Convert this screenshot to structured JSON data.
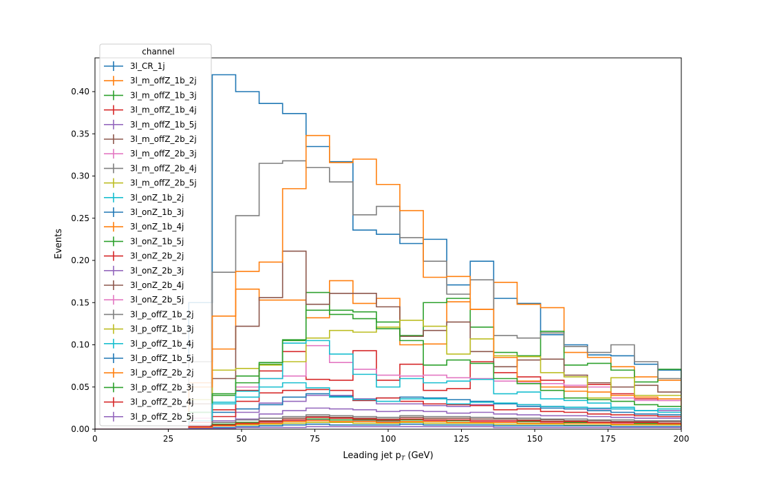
{
  "chart_data": {
    "type": "step-histogram",
    "xlabel": "Leading jet  p_T (GeV)",
    "ylabel": "Events",
    "xlim": [
      0,
      200
    ],
    "ylim": [
      0,
      0.44
    ],
    "xticks": [
      0,
      25,
      50,
      75,
      100,
      125,
      150,
      175,
      200
    ],
    "yticks": [
      0.0,
      0.05,
      0.1,
      0.15,
      0.2,
      0.25,
      0.3,
      0.35,
      0.4
    ],
    "ytick_labels": [
      "0.00",
      "0.05",
      "0.10",
      "0.15",
      "0.20",
      "0.25",
      "0.30",
      "0.35",
      "0.40"
    ],
    "bin_edges": [
      0,
      8,
      16,
      24,
      32,
      40,
      48,
      56,
      64,
      72,
      80,
      88,
      96,
      104,
      112,
      120,
      128,
      136,
      144,
      152,
      160,
      168,
      176,
      184,
      192,
      200
    ],
    "grid": false,
    "legend": {
      "title": "channel",
      "placement": "top-left"
    },
    "series": [
      {
        "name": "3l_CR_1j",
        "color": "#1f77b4",
        "values": [
          0,
          0,
          0,
          0,
          0.15,
          0.42,
          0.4,
          0.386,
          0.374,
          0.335,
          0.317,
          0.236,
          0.231,
          0.22,
          0.225,
          0.171,
          0.199,
          0.155,
          0.149,
          0.112,
          0.1,
          0.088,
          0.087,
          0.077,
          0.07
        ]
      },
      {
        "name": "3l_m_offZ_1b_2j",
        "color": "#ff7f0e",
        "values": [
          0,
          0,
          0,
          0,
          0.055,
          0.095,
          0.166,
          0.153,
          0.153,
          0.132,
          0.176,
          0.149,
          0.155,
          0.1,
          0.101,
          0.151,
          0.142,
          0.174,
          0.148,
          0.144,
          0.091,
          0.085,
          0.074,
          0.062,
          0.058
        ]
      },
      {
        "name": "3l_m_offZ_1b_3j",
        "color": "#2ca02c",
        "values": [
          0,
          0,
          0,
          0,
          0.02,
          0.04,
          0.063,
          0.077,
          0.105,
          0.162,
          0.141,
          0.139,
          0.127,
          0.111,
          0.15,
          0.155,
          0.121,
          0.091,
          0.087,
          0.116,
          0.076,
          0.078,
          0.07,
          0.056,
          0.071
        ]
      },
      {
        "name": "3l_m_offZ_1b_4j",
        "color": "#d62728",
        "values": [
          0,
          0,
          0,
          0,
          0.01,
          0.023,
          0.046,
          0.069,
          0.092,
          0.059,
          0.058,
          0.093,
          0.058,
          0.077,
          0.046,
          0.048,
          0.08,
          0.067,
          0.062,
          0.058,
          0.05,
          0.053,
          0.042,
          0.036,
          0.034
        ]
      },
      {
        "name": "3l_m_offZ_1b_5j",
        "color": "#9467bd",
        "values": [
          0,
          0,
          0,
          0,
          0.005,
          0.01,
          0.02,
          0.031,
          0.033,
          0.04,
          0.04,
          0.036,
          0.03,
          0.03,
          0.028,
          0.027,
          0.029,
          0.03,
          0.029,
          0.027,
          0.026,
          0.024,
          0.024,
          0.022,
          0.022
        ]
      },
      {
        "name": "3l_m_offZ_2b_2j",
        "color": "#8c564b",
        "values": [
          0,
          0,
          0,
          0,
          0.03,
          0.06,
          0.122,
          0.156,
          0.211,
          0.148,
          0.161,
          0.161,
          0.145,
          0.11,
          0.117,
          0.127,
          0.092,
          0.074,
          0.082,
          0.083,
          0.064,
          0.055,
          0.05,
          0.052,
          0.044
        ]
      },
      {
        "name": "3l_m_offZ_2b_3j",
        "color": "#e377c2",
        "values": [
          0,
          0,
          0,
          0,
          0.013,
          0.03,
          0.05,
          0.06,
          0.063,
          0.099,
          0.079,
          0.071,
          0.064,
          0.063,
          0.064,
          0.061,
          0.06,
          0.057,
          0.056,
          0.054,
          0.052,
          0.05,
          0.037,
          0.034,
          0.034
        ]
      },
      {
        "name": "3l_m_offZ_2b_4j",
        "color": "#7f7f7f",
        "values": [
          0,
          0,
          0,
          0,
          0.08,
          0.186,
          0.253,
          0.315,
          0.318,
          0.31,
          0.293,
          0.254,
          0.264,
          0.227,
          0.199,
          0.16,
          0.177,
          0.111,
          0.108,
          0.114,
          0.098,
          0.091,
          0.1,
          0.08,
          0.06
        ]
      },
      {
        "name": "3l_m_offZ_2b_5j",
        "color": "#bcbd22",
        "values": [
          0,
          0,
          0,
          0,
          0.035,
          0.07,
          0.072,
          0.076,
          0.08,
          0.108,
          0.117,
          0.115,
          0.121,
          0.129,
          0.122,
          0.089,
          0.107,
          0.087,
          0.086,
          0.067,
          0.062,
          0.037,
          0.061,
          0.04,
          0.04
        ]
      },
      {
        "name": "3l_onZ_1b_2j",
        "color": "#17becf",
        "values": [
          0,
          0,
          0,
          0,
          0.02,
          0.032,
          0.045,
          0.06,
          0.102,
          0.105,
          0.089,
          0.065,
          0.05,
          0.06,
          0.055,
          0.057,
          0.059,
          0.042,
          0.044,
          0.036,
          0.034,
          0.031,
          0.026,
          0.022,
          0.024
        ]
      },
      {
        "name": "3l_onZ_1b_3j",
        "color": "#1f77b4",
        "values": [
          0,
          0,
          0,
          0,
          0.01,
          0.02,
          0.024,
          0.029,
          0.038,
          0.042,
          0.039,
          0.034,
          0.037,
          0.038,
          0.037,
          0.035,
          0.033,
          0.03,
          0.027,
          0.025,
          0.024,
          0.022,
          0.02,
          0.018,
          0.017
        ]
      },
      {
        "name": "3l_onZ_1b_4j",
        "color": "#ff7f0e",
        "values": [
          0,
          0,
          0,
          0,
          0.05,
          0.134,
          0.187,
          0.198,
          0.285,
          0.348,
          0.316,
          0.32,
          0.29,
          0.259,
          0.18,
          0.181,
          0.142,
          0.085,
          0.057,
          0.05,
          0.045,
          0.044,
          0.04,
          0.038,
          0.036
        ]
      },
      {
        "name": "3l_onZ_1b_5j",
        "color": "#2ca02c",
        "values": [
          0,
          0,
          0,
          0,
          0.02,
          0.042,
          0.055,
          0.079,
          0.106,
          0.141,
          0.136,
          0.131,
          0.119,
          0.105,
          0.076,
          0.082,
          0.078,
          0.06,
          0.054,
          0.046,
          0.037,
          0.035,
          0.033,
          0.029,
          0.027
        ]
      },
      {
        "name": "3l_onZ_2b_2j",
        "color": "#d62728",
        "values": [
          0,
          0,
          0,
          0,
          0.008,
          0.015,
          0.033,
          0.043,
          0.046,
          0.047,
          0.046,
          0.034,
          0.037,
          0.033,
          0.03,
          0.029,
          0.028,
          0.023,
          0.024,
          0.021,
          0.02,
          0.018,
          0.017,
          0.016,
          0.015
        ]
      },
      {
        "name": "3l_onZ_2b_3j",
        "color": "#9467bd",
        "values": [
          0,
          0,
          0,
          0,
          0.003,
          0.008,
          0.012,
          0.018,
          0.022,
          0.025,
          0.024,
          0.023,
          0.021,
          0.022,
          0.021,
          0.019,
          0.02,
          0.018,
          0.017,
          0.016,
          0.016,
          0.015,
          0.014,
          0.013,
          0.013
        ]
      },
      {
        "name": "3l_onZ_2b_4j",
        "color": "#8c564b",
        "values": [
          0,
          0,
          0,
          0,
          0.002,
          0.005,
          0.008,
          0.01,
          0.013,
          0.015,
          0.014,
          0.013,
          0.012,
          0.014,
          0.013,
          0.013,
          0.012,
          0.012,
          0.011,
          0.011,
          0.01,
          0.01,
          0.009,
          0.009,
          0.009
        ]
      },
      {
        "name": "3l_onZ_2b_5j",
        "color": "#e377c2",
        "values": [
          0,
          0,
          0,
          0,
          0.002,
          0.004,
          0.006,
          0.008,
          0.01,
          0.011,
          0.011,
          0.01,
          0.009,
          0.011,
          0.01,
          0.01,
          0.009,
          0.009,
          0.009,
          0.008,
          0.008,
          0.008,
          0.007,
          0.007,
          0.007
        ]
      },
      {
        "name": "3l_p_offZ_1b_2j",
        "color": "#7f7f7f",
        "values": [
          0,
          0,
          0,
          0,
          0.004,
          0.008,
          0.011,
          0.013,
          0.015,
          0.017,
          0.016,
          0.015,
          0.014,
          0.016,
          0.015,
          0.015,
          0.014,
          0.013,
          0.013,
          0.012,
          0.012,
          0.011,
          0.011,
          0.01,
          0.01
        ]
      },
      {
        "name": "3l_p_offZ_1b_3j",
        "color": "#bcbd22",
        "values": [
          0,
          0,
          0,
          0,
          0.002,
          0.004,
          0.005,
          0.006,
          0.007,
          0.008,
          0.008,
          0.007,
          0.007,
          0.008,
          0.007,
          0.007,
          0.007,
          0.006,
          0.006,
          0.006,
          0.005,
          0.005,
          0.005,
          0.005,
          0.005
        ]
      },
      {
        "name": "3l_p_offZ_1b_4j",
        "color": "#17becf",
        "values": [
          0,
          0,
          0,
          0,
          0.01,
          0.03,
          0.038,
          0.05,
          0.055,
          0.049,
          0.038,
          0.035,
          0.033,
          0.036,
          0.036,
          0.03,
          0.032,
          0.031,
          0.029,
          0.027,
          0.026,
          0.025,
          0.024,
          0.022,
          0.02
        ]
      },
      {
        "name": "3l_p_offZ_1b_5j",
        "color": "#1f77b4",
        "values": [
          0,
          0,
          0,
          0,
          0.001,
          0.002,
          0.003,
          0.004,
          0.005,
          0.006,
          0.005,
          0.005,
          0.005,
          0.006,
          0.005,
          0.005,
          0.005,
          0.004,
          0.004,
          0.004,
          0.004,
          0.004,
          0.003,
          0.003,
          0.003
        ]
      },
      {
        "name": "3l_p_offZ_2b_2j",
        "color": "#ff7f0e",
        "values": [
          0,
          0,
          0,
          0,
          0.002,
          0.004,
          0.006,
          0.007,
          0.009,
          0.01,
          0.009,
          0.009,
          0.008,
          0.009,
          0.009,
          0.008,
          0.008,
          0.008,
          0.007,
          0.007,
          0.007,
          0.007,
          0.006,
          0.006,
          0.006
        ]
      },
      {
        "name": "3l_p_offZ_2b_3j",
        "color": "#2ca02c",
        "values": [
          0,
          0,
          0,
          0,
          0.004,
          0.006,
          0.008,
          0.009,
          0.011,
          0.012,
          0.011,
          0.011,
          0.01,
          0.011,
          0.011,
          0.01,
          0.01,
          0.01,
          0.009,
          0.009,
          0.008,
          0.008,
          0.008,
          0.007,
          0.007
        ]
      },
      {
        "name": "3l_p_offZ_2b_4j",
        "color": "#d62728",
        "values": [
          0,
          0,
          0,
          0,
          0.003,
          0.005,
          0.007,
          0.009,
          0.011,
          0.014,
          0.013,
          0.012,
          0.011,
          0.012,
          0.011,
          0.011,
          0.01,
          0.01,
          0.01,
          0.009,
          0.009,
          0.008,
          0.008,
          0.008,
          0.007
        ]
      },
      {
        "name": "3l_p_offZ_2b_5j",
        "color": "#9467bd",
        "values": [
          0,
          0,
          0,
          0,
          0.001,
          0.001,
          0.002,
          0.002,
          0.002,
          0.003,
          0.003,
          0.003,
          0.003,
          0.003,
          0.003,
          0.003,
          0.003,
          0.002,
          0.002,
          0.002,
          0.002,
          0.002,
          0.002,
          0.002,
          0.002
        ]
      }
    ]
  }
}
